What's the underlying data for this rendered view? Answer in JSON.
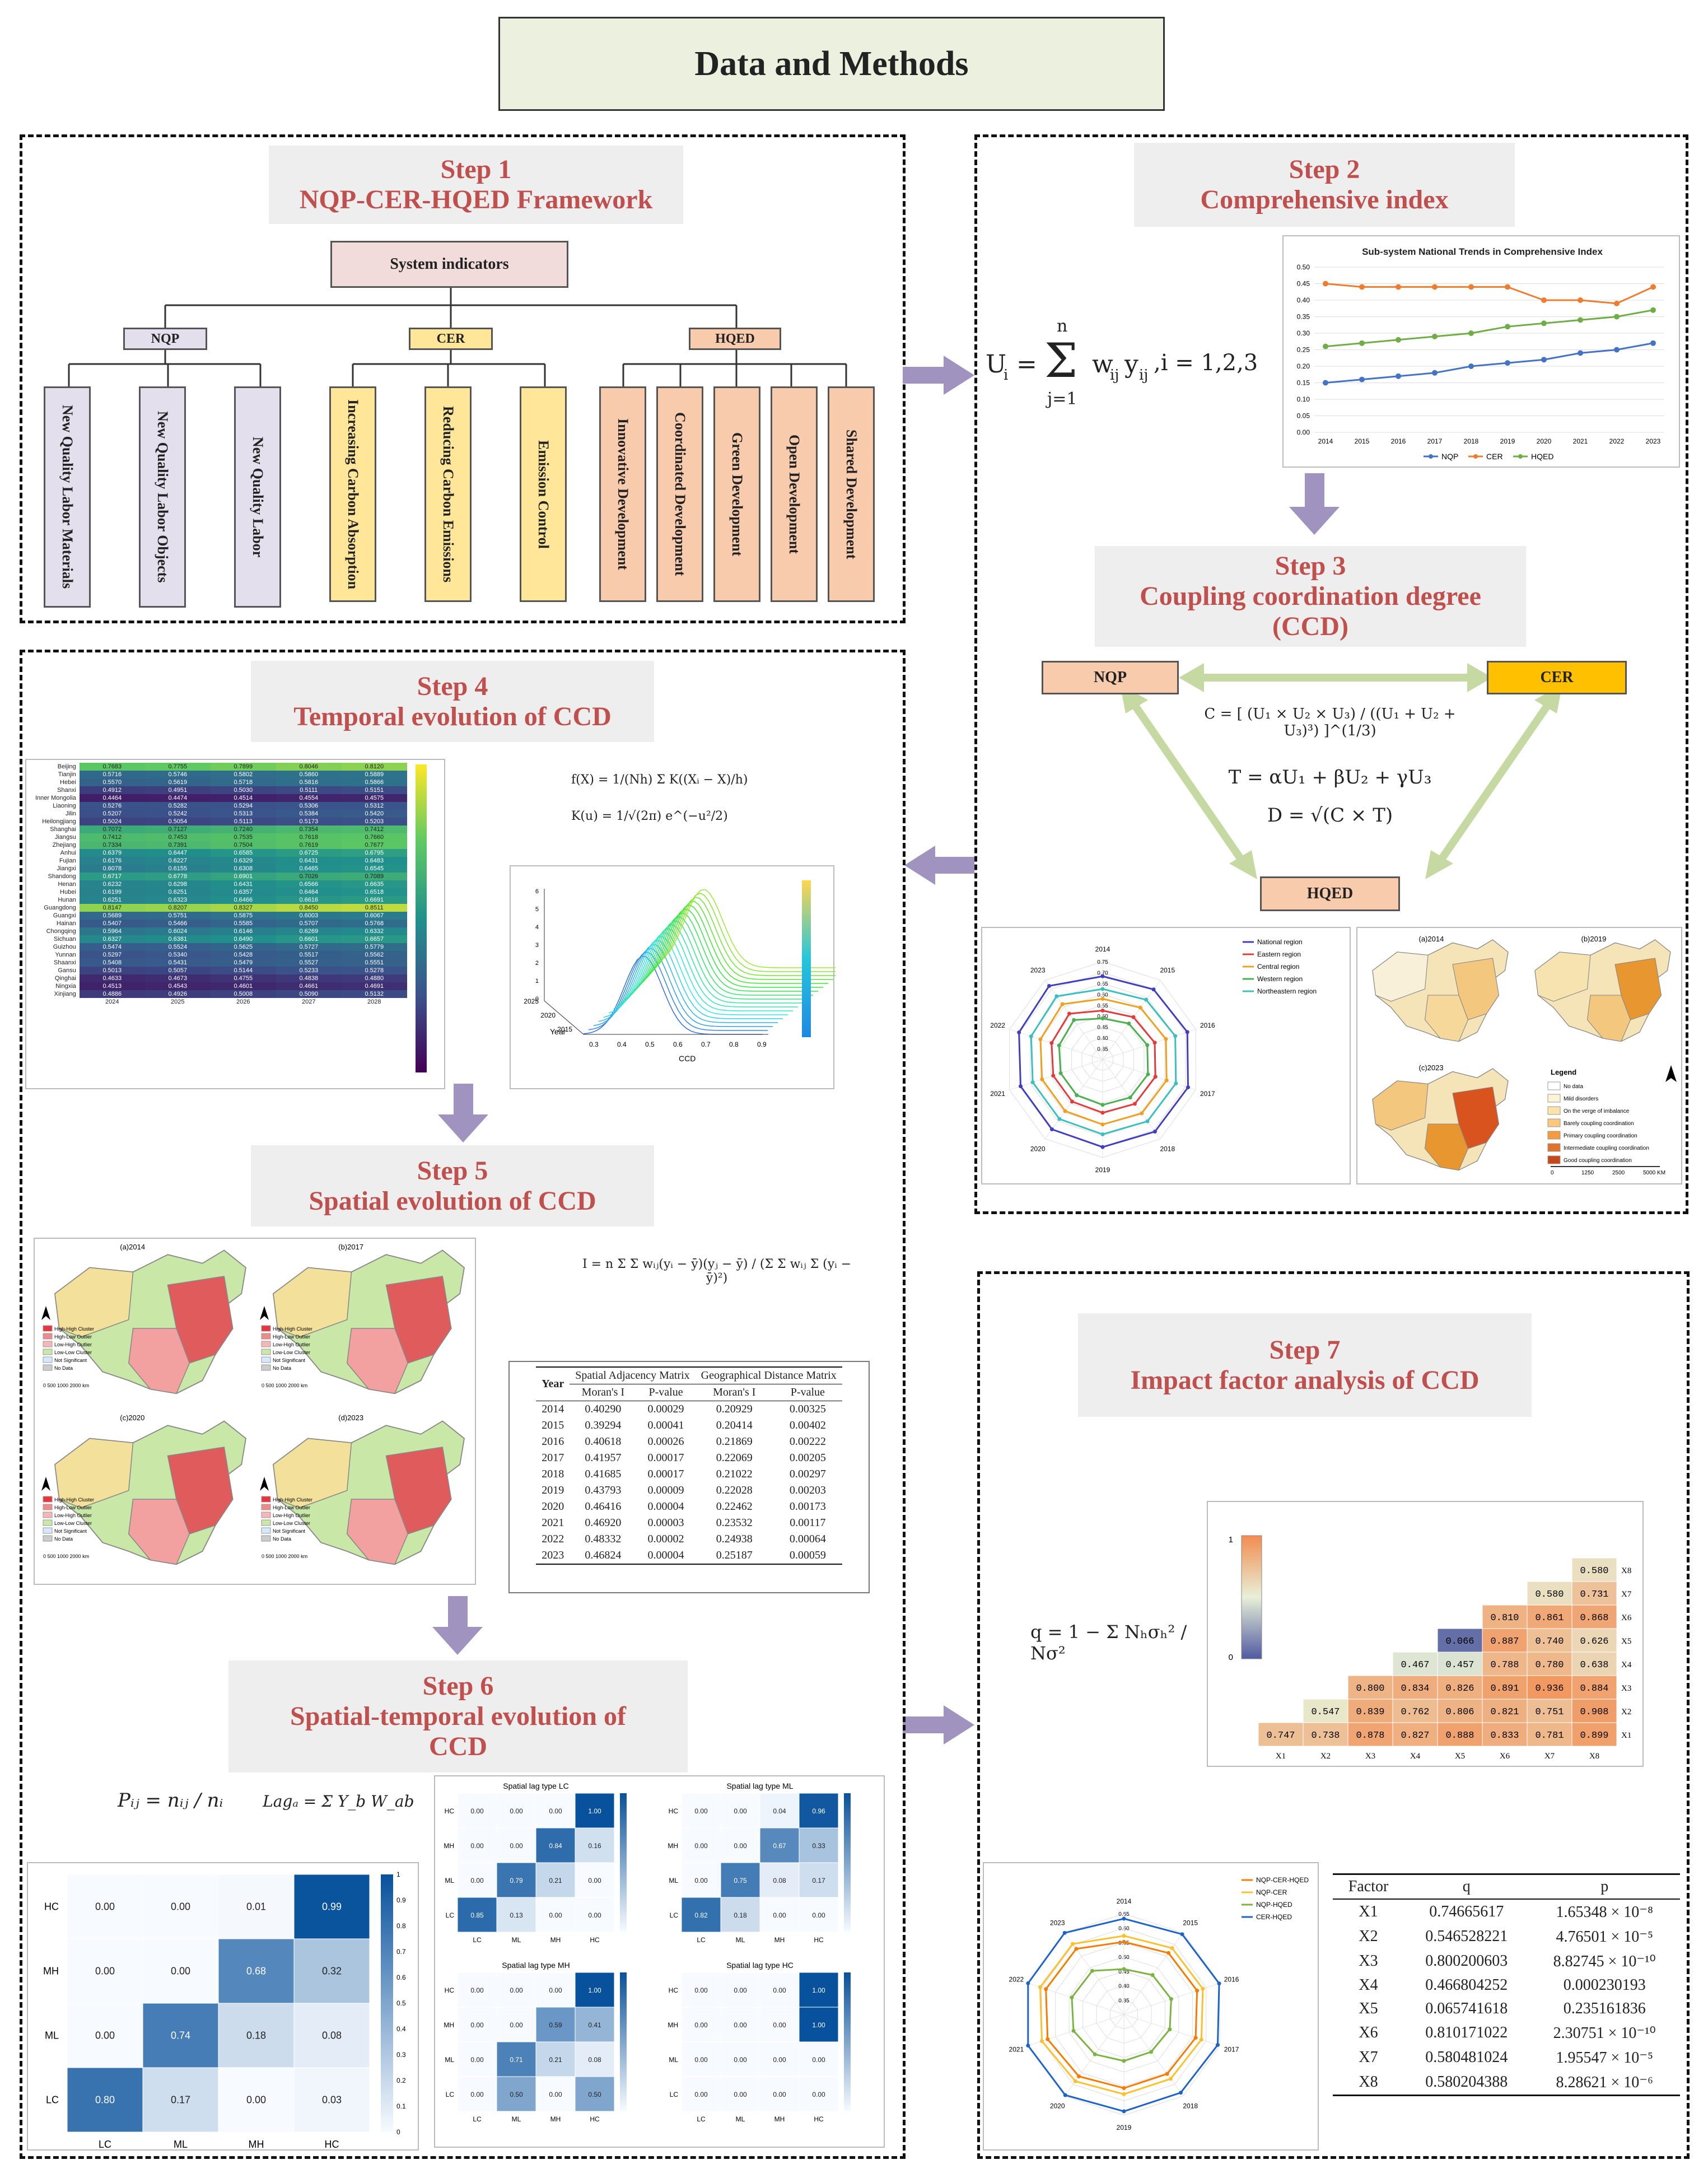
{
  "title": "Data and Methods",
  "step1": {
    "heading": [
      "Step 1",
      "NQP-CER-HQED Framework"
    ],
    "root": "System indicators",
    "groups": [
      {
        "name": "NQP",
        "items": [
          "New Quality Labor Materials",
          "New Quality Labor Objects",
          "New Quality Labor"
        ]
      },
      {
        "name": "CER",
        "items": [
          "Increasing Carbon Absorption",
          "Reducing Carbon Emissions",
          "Emission Control"
        ]
      },
      {
        "name": "HQED",
        "items": [
          "Innovative Development",
          "Coordinated Development",
          "Green Development",
          "Open Development",
          "Shared Development"
        ]
      }
    ]
  },
  "step2": {
    "heading": [
      "Step 2",
      "Comprehensive index"
    ],
    "formula_lhs": "U",
    "formula_sub": "i",
    "formula_sum_top": "n",
    "formula_sum_bottom": "j=1",
    "formula_rhs": "w",
    "formula_rhs_sub": "ij",
    "formula_y": "y",
    "formula_y_sub": "ij",
    "formula_index": ",i = 1,2,3"
  },
  "step3": {
    "heading": [
      "Step 3",
      "Coupling coordination degree",
      "(CCD)"
    ],
    "nodes": [
      "NQP",
      "CER",
      "HQED"
    ],
    "formula_c": "C = [ (U₁ × U₂ × U₃) / ((U₁ + U₂ + U₃)³) ]^(1/3)",
    "formula_t": "T = αU₁ + βU₂ + γU₃",
    "formula_d": "D = √(C × T)"
  },
  "step4": {
    "heading": [
      "Step 4",
      "Temporal evolution of CCD"
    ]
  },
  "step5": {
    "heading": [
      "Step 5",
      "Spatial evolution of CCD"
    ]
  },
  "step6": {
    "heading": [
      "Step 6",
      "Spatial-temporal evolution of",
      "CCD"
    ]
  },
  "step7": {
    "heading": [
      "Step 7",
      "Impact factor analysis of CCD"
    ]
  },
  "kde_formula": {
    "fx": "f(X) = 1/(Nh) Σ K((Xᵢ − X)/h)",
    "ku": "K(u) = 1/√(2π) e^(−u²/2)"
  },
  "morans_formula": "I = n Σ Σ wᵢⱼ(yᵢ − ȳ)(yⱼ − ȳ) / (Σ Σ wᵢⱼ Σ (yᵢ − ȳ)²)",
  "markov_formula": {
    "p": "Pᵢⱼ = nᵢⱼ / nᵢ",
    "lag": "Lagₐ = Σ Y_b W_ab"
  },
  "geodetector_formula": "q = 1 − Σ Nₕσₕ² / Nσ²",
  "trend_chart": {
    "title": "Sub-system National Trends in Comprehensive Index",
    "years": [
      "2014",
      "2015",
      "2016",
      "2017",
      "2018",
      "2019",
      "2020",
      "2021",
      "2022",
      "2023"
    ],
    "yticks": [
      "0.00",
      "0.05",
      "0.10",
      "0.15",
      "0.20",
      "0.25",
      "0.30",
      "0.35",
      "0.40",
      "0.45",
      "0.50"
    ],
    "legend": [
      "NQP",
      "CER",
      "HQED"
    ]
  },
  "chart_data": [
    {
      "type": "line",
      "title": "Sub-system National Trends in Comprehensive Index",
      "categories": [
        "2014",
        "2015",
        "2016",
        "2017",
        "2018",
        "2019",
        "2020",
        "2021",
        "2022",
        "2023"
      ],
      "ylim": [
        0,
        0.5
      ],
      "series": [
        {
          "name": "NQP",
          "color": "#4472c4",
          "values": [
            0.15,
            0.16,
            0.17,
            0.18,
            0.2,
            0.21,
            0.22,
            0.24,
            0.25,
            0.27
          ]
        },
        {
          "name": "CER",
          "color": "#ed7d31",
          "values": [
            0.45,
            0.44,
            0.44,
            0.44,
            0.44,
            0.44,
            0.4,
            0.4,
            0.39,
            0.44
          ]
        },
        {
          "name": "HQED",
          "color": "#70ad47",
          "values": [
            0.26,
            0.27,
            0.28,
            0.29,
            0.3,
            0.32,
            0.33,
            0.34,
            0.35,
            0.37
          ]
        }
      ]
    },
    {
      "type": "table",
      "columns": [
        "Year",
        "Spatial Adjacency Matrix Moran's I",
        "Spatial Adjacency Matrix P-value",
        "Geographical Distance Matrix Moran's I",
        "Geographical Distance Matrix P-value"
      ],
      "rows": [
        [
          "2014",
          "0.40290",
          "0.00029",
          "0.20929",
          "0.00325"
        ],
        [
          "2015",
          "0.39294",
          "0.00041",
          "0.20414",
          "0.00402"
        ],
        [
          "2016",
          "0.40618",
          "0.00026",
          "0.21869",
          "0.00222"
        ],
        [
          "2017",
          "0.41957",
          "0.00017",
          "0.22069",
          "0.00205"
        ],
        [
          "2018",
          "0.41685",
          "0.00017",
          "0.21022",
          "0.00297"
        ],
        [
          "2019",
          "0.43793",
          "0.00009",
          "0.22028",
          "0.00203"
        ],
        [
          "2020",
          "0.46416",
          "0.00004",
          "0.22462",
          "0.00173"
        ],
        [
          "2021",
          "0.46920",
          "0.00003",
          "0.23532",
          "0.00117"
        ],
        [
          "2022",
          "0.48332",
          "0.00002",
          "0.24938",
          "0.00064"
        ],
        [
          "2023",
          "0.46824",
          "0.00004",
          "0.25187",
          "0.00059"
        ]
      ]
    },
    {
      "type": "table",
      "columns": [
        "Factor",
        "q",
        "p"
      ],
      "rows": [
        [
          "X1",
          "0.74665617",
          "1.65348 × 10⁻⁸"
        ],
        [
          "X2",
          "0.546528221",
          "4.76501 × 10⁻⁵"
        ],
        [
          "X3",
          "0.800200603",
          "8.82745 × 10⁻¹⁰"
        ],
        [
          "X4",
          "0.466804252",
          "0.000230193"
        ],
        [
          "X5",
          "0.065741618",
          "0.235161836"
        ],
        [
          "X6",
          "0.810171022",
          "2.30751 × 10⁻¹⁰"
        ],
        [
          "X7",
          "0.580481024",
          "1.95547 × 10⁻⁵"
        ],
        [
          "X8",
          "0.580204388",
          "8.28621 × 10⁻⁶"
        ]
      ]
    },
    {
      "type": "heatmap",
      "title": "Markov transition matrix",
      "rows": [
        "HC",
        "MH",
        "ML",
        "LC"
      ],
      "cols": [
        "LC",
        "ML",
        "MH",
        "HC"
      ],
      "values": [
        [
          0.0,
          0.0,
          0.01,
          0.99
        ],
        [
          0.0,
          0.0,
          0.68,
          0.32
        ],
        [
          0.0,
          0.74,
          0.18,
          0.08
        ],
        [
          0.8,
          0.17,
          0.0,
          0.03
        ]
      ]
    },
    {
      "type": "heatmap",
      "title": "Interaction detector",
      "rows": [
        "X8",
        "X7",
        "X6",
        "X5",
        "X4",
        "X3",
        "X2",
        "X1"
      ],
      "cols": [
        "X1",
        "X2",
        "X3",
        "X4",
        "X5",
        "X6",
        "X7",
        "X8"
      ],
      "values": [
        [
          null,
          null,
          null,
          null,
          null,
          null,
          null,
          0.58
        ],
        [
          null,
          null,
          null,
          null,
          null,
          null,
          0.58,
          0.731
        ],
        [
          null,
          null,
          null,
          null,
          null,
          0.81,
          0.861,
          0.868
        ],
        [
          null,
          null,
          null,
          null,
          0.066,
          0.887,
          0.74,
          0.626
        ],
        [
          null,
          null,
          null,
          0.467,
          0.457,
          0.788,
          0.78,
          0.638
        ],
        [
          null,
          null,
          0.8,
          0.834,
          0.826,
          0.891,
          0.936,
          0.884
        ],
        [
          null,
          0.547,
          0.839,
          0.762,
          0.806,
          0.821,
          0.751,
          0.908
        ],
        [
          0.747,
          0.738,
          0.878,
          0.827,
          0.888,
          0.833,
          0.781,
          0.899
        ]
      ]
    }
  ],
  "heatmap_ccd": {
    "provinces": [
      "Beijing",
      "Tianjin",
      "Hebei",
      "Shanxi",
      "Inner Mongolia",
      "Liaoning",
      "Jilin",
      "Heilongjiang",
      "Shanghai",
      "Jiangsu",
      "Zhejiang",
      "Anhui",
      "Fujian",
      "Jiangxi",
      "Shandong",
      "Henan",
      "Hubei",
      "Hunan",
      "Guangdong",
      "Guangxi",
      "Hainan",
      "Chongqing",
      "Sichuan",
      "Guizhou",
      "Yunnan",
      "Shaanxi",
      "Gansu",
      "Qinghai",
      "Ningxia",
      "Xinjiang"
    ],
    "years": [
      "2024",
      "2025",
      "2026",
      "2027",
      "2028"
    ],
    "values": [
      [
        "0.7683",
        "0.7755",
        "0.7899",
        "0.8046",
        "0.8120"
      ],
      [
        "0.5716",
        "0.5746",
        "0.5802",
        "0.5860",
        "0.5889"
      ],
      [
        "0.5570",
        "0.5619",
        "0.5718",
        "0.5816",
        "0.5866"
      ],
      [
        "0.4912",
        "0.4951",
        "0.5030",
        "0.5111",
        "0.5151"
      ],
      [
        "0.4464",
        "0.4474",
        "0.4514",
        "0.4554",
        "0.4575"
      ],
      [
        "0.5276",
        "0.5282",
        "0.5294",
        "0.5306",
        "0.5312"
      ],
      [
        "0.5207",
        "0.5242",
        "0.5313",
        "0.5384",
        "0.5420"
      ],
      [
        "0.5024",
        "0.5054",
        "0.5113",
        "0.5173",
        "0.5203"
      ],
      [
        "0.7072",
        "0.7127",
        "0.7240",
        "0.7354",
        "0.7412"
      ],
      [
        "0.7412",
        "0.7453",
        "0.7535",
        "0.7618",
        "0.7660"
      ],
      [
        "0.7334",
        "0.7391",
        "0.7504",
        "0.7619",
        "0.7677"
      ],
      [
        "0.6379",
        "0.6447",
        "0.6585",
        "0.6725",
        "0.6795"
      ],
      [
        "0.6176",
        "0.6227",
        "0.6329",
        "0.6431",
        "0.6483"
      ],
      [
        "0.6078",
        "0.6155",
        "0.6308",
        "0.6465",
        "0.6545"
      ],
      [
        "0.6717",
        "0.6778",
        "0.6901",
        "0.7026",
        "0.7089"
      ],
      [
        "0.6232",
        "0.6298",
        "0.6431",
        "0.6566",
        "0.6635"
      ],
      [
        "0.6199",
        "0.6251",
        "0.6357",
        "0.6464",
        "0.6518"
      ],
      [
        "0.6251",
        "0.6323",
        "0.6466",
        "0.6616",
        "0.6691"
      ],
      [
        "0.8147",
        "0.8207",
        "0.8327",
        "0.8450",
        "0.8511"
      ],
      [
        "0.5689",
        "0.5751",
        "0.5875",
        "0.6003",
        "0.6067"
      ],
      [
        "0.5407",
        "0.5466",
        "0.5585",
        "0.5707",
        "0.5768"
      ],
      [
        "0.5964",
        "0.6024",
        "0.6146",
        "0.6269",
        "0.6332"
      ],
      [
        "0.6327",
        "0.6381",
        "0.6490",
        "0.6601",
        "0.6657"
      ],
      [
        "0.5474",
        "0.5524",
        "0.5625",
        "0.5727",
        "0.5779"
      ],
      [
        "0.5297",
        "0.5340",
        "0.5428",
        "0.5517",
        "0.5562"
      ],
      [
        "0.5408",
        "0.5431",
        "0.5479",
        "0.5527",
        "0.5551"
      ],
      [
        "0.5013",
        "0.5057",
        "0.5144",
        "0.5233",
        "0.5278"
      ],
      [
        "0.4633",
        "0.4673",
        "0.4755",
        "0.4838",
        "0.4880"
      ],
      [
        "0.4513",
        "0.4543",
        "0.4601",
        "0.4661",
        "0.4691"
      ],
      [
        "0.4886",
        "0.4926",
        "0.5008",
        "0.5090",
        "0.5132"
      ]
    ]
  },
  "kde3d": {
    "axis_year": "Year",
    "axis_ccd": "CCD",
    "ccd_ticks": [
      "0.3",
      "0.4",
      "0.5",
      "0.6",
      "0.7",
      "0.8",
      "0.9"
    ],
    "year_ticks": [
      "2015",
      "2020",
      "2025"
    ],
    "z_ticks": [
      "0",
      "1",
      "2",
      "3",
      "4",
      "5",
      "6"
    ]
  },
  "radar1": {
    "years": [
      "2014",
      "2015",
      "2016",
      "2017",
      "2018",
      "2019",
      "2020",
      "2021",
      "2022",
      "2023"
    ],
    "legend": [
      "National region",
      "Eastern region",
      "Central region",
      "Western region",
      "Northeastern region"
    ],
    "ticks": [
      "0.35",
      "0.40",
      "0.45",
      "0.50",
      "0.55",
      "0.60",
      "0.65",
      "0.70",
      "0.75"
    ]
  },
  "radar2": {
    "years": [
      "2014",
      "2015",
      "2016",
      "2017",
      "2018",
      "2019",
      "2020",
      "2021",
      "2022",
      "2023"
    ],
    "legend": [
      "NQP-CER-HQED",
      "NQP-CER",
      "NQP-HQED",
      "CER-HQED"
    ],
    "ticks": [
      "0.35",
      "0.40",
      "0.45",
      "0.50",
      "0.55",
      "0.60",
      "0.65"
    ]
  },
  "maps3": {
    "titles": [
      "(a)2014",
      "(b)2019",
      "(c)2023"
    ],
    "legend_title": "Legend",
    "legend_items": [
      "No data",
      "Mild disorders",
      "On the verge of imbalance",
      "Barely coupling coordination",
      "Primary coupling coordination",
      "Intermediate coupling coordination",
      "Good coupling coordination"
    ],
    "scale": [
      "0",
      "1250",
      "2500",
      "5000 KM"
    ]
  },
  "maps5": {
    "titles": [
      "(a)2014",
      "(b)2017",
      "(c)2020",
      "(d)2023"
    ],
    "legend_items": [
      "High-High Cluster",
      "High-Low Outlier",
      "Low-High Outlier",
      "Low-Low Cluster",
      "Not Significant",
      "No Data"
    ],
    "scale": "0   500  1000        2000 km"
  },
  "markov": {
    "rows": [
      "HC",
      "MH",
      "ML",
      "LC"
    ],
    "cols": [
      "LC",
      "ML",
      "MH",
      "HC"
    ],
    "values": [
      [
        "0.00",
        "0.00",
        "0.01",
        "0.99"
      ],
      [
        "0.00",
        "0.00",
        "0.68",
        "0.32"
      ],
      [
        "0.00",
        "0.74",
        "0.18",
        "0.08"
      ],
      [
        "0.80",
        "0.17",
        "0.00",
        "0.03"
      ]
    ],
    "scale": [
      "0",
      "0.1",
      "0.2",
      "0.3",
      "0.4",
      "0.5",
      "0.6",
      "0.7",
      "0.8",
      "0.9",
      "1"
    ]
  },
  "spatial_lag": [
    {
      "title": "Spatial lag type LC",
      "values": [
        [
          "0.00",
          "0.00",
          "0.00",
          "1.00"
        ],
        [
          "0.00",
          "0.00",
          "0.84",
          "0.16"
        ],
        [
          "0.00",
          "0.79",
          "0.21",
          "0.00"
        ],
        [
          "0.85",
          "0.13",
          "0.00",
          "0.00"
        ]
      ]
    },
    {
      "title": "Spatial lag type ML",
      "values": [
        [
          "0.00",
          "0.00",
          "0.04",
          "0.96"
        ],
        [
          "0.00",
          "0.00",
          "0.67",
          "0.33"
        ],
        [
          "0.00",
          "0.75",
          "0.08",
          "0.17"
        ],
        [
          "0.82",
          "0.18",
          "0.00",
          "0.00"
        ]
      ]
    },
    {
      "title": "Spatial lag type MH",
      "values": [
        [
          "0.00",
          "0.00",
          "0.00",
          "1.00"
        ],
        [
          "0.00",
          "0.00",
          "0.59",
          "0.41"
        ],
        [
          "0.00",
          "0.71",
          "0.21",
          "0.08"
        ],
        [
          "0.00",
          "0.50",
          "0.00",
          "0.50"
        ]
      ]
    },
    {
      "title": "Spatial lag type HC",
      "values": [
        [
          "0.00",
          "0.00",
          "0.00",
          "1.00"
        ],
        [
          "0.00",
          "0.00",
          "0.00",
          "1.00"
        ],
        [
          "0.00",
          "0.00",
          "0.00",
          "0.00"
        ],
        [
          "0.00",
          "0.00",
          "0.00",
          "0.00"
        ]
      ]
    }
  ],
  "morans_table": {
    "col_groups": [
      "Spatial Adjacency Matrix",
      "Geographical Distance Matrix"
    ],
    "year_label": "Year",
    "subcols": [
      "Moran's I",
      "P-value",
      "Moran's I",
      "P-value"
    ]
  },
  "factor_table": {
    "headers": [
      "Factor",
      "q",
      "p"
    ]
  },
  "interaction": {
    "scale_top": "1",
    "scale_bottom": "0"
  },
  "colors": {
    "header_bg": "#eeeeee",
    "header_text": "#c0504d",
    "nqp": "#e4dfec",
    "cer": "#ffe699",
    "hqed": "#f8cbad",
    "title_bg": "#ebf1de",
    "arrow": "#a093c0",
    "tri_line": "#c6d9a3"
  }
}
